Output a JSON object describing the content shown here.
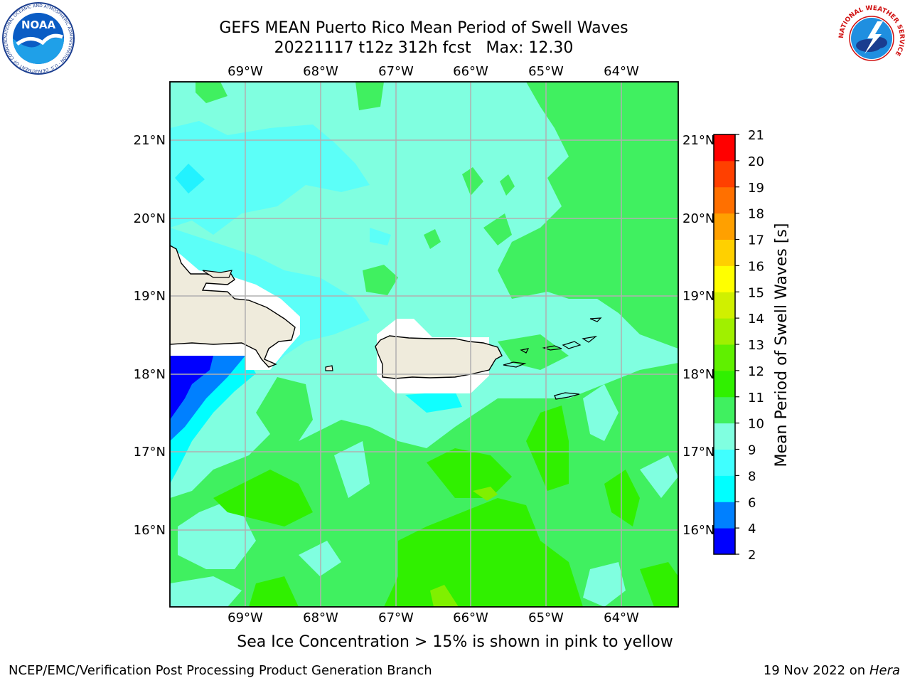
{
  "title": {
    "line1": "GEFS MEAN Puerto Rico Mean Period of Swell Waves",
    "line2": "20221117 t12z 312h fcst   Max: 12.30"
  },
  "map": {
    "lon_labels": [
      "69°W",
      "68°W",
      "67°W",
      "66°W",
      "65°W",
      "64°W"
    ],
    "lat_labels": [
      "21°N",
      "20°N",
      "19°N",
      "18°N",
      "17°N",
      "16°N"
    ]
  },
  "colorbar": {
    "label": "Mean Period of Swell Waves [s]",
    "ticks": [
      "2",
      "4",
      "6",
      "8",
      "9",
      "10",
      "11",
      "12",
      "13",
      "14",
      "15",
      "16",
      "17",
      "18",
      "19",
      "20",
      "21"
    ],
    "colors": [
      "#0000ff",
      "#0080ff",
      "#00ffff",
      "#40ffff",
      "#80ffe0",
      "#40f060",
      "#30f000",
      "#60f000",
      "#a0f000",
      "#d0f000",
      "#ffff00",
      "#ffd000",
      "#ffa000",
      "#ff7000",
      "#ff4000",
      "#ff0000"
    ]
  },
  "caption": "Sea Ice Concentration > 15% is shown in pink to yellow",
  "footer": {
    "left": "NCEP/EMC/Verification Post Processing Product Generation Branch",
    "date": "19 Nov 2022 on",
    "host": "Hera"
  },
  "logos": {
    "noaa": "NOAA",
    "noaa_ring": "NATIONAL OCEANIC AND ATMOSPHERIC ADMINISTRATION · U.S. DEPARTMENT OF COMMERCE",
    "nws_ring": "NATIONAL WEATHER SERVICE"
  }
}
